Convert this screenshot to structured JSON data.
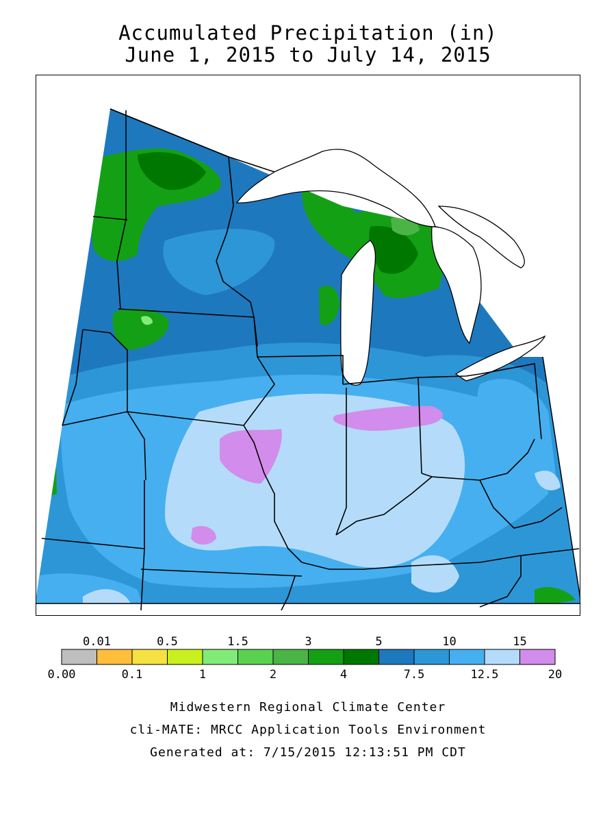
{
  "title": {
    "line1": "Accumulated Precipitation (in)",
    "line2": "June 1, 2015 to July 14, 2015"
  },
  "legend": {
    "colors": [
      "#bebebe",
      "#ffbe3c",
      "#f5e141",
      "#c8f01e",
      "#82eb78",
      "#5ad250",
      "#4bb446",
      "#14a014",
      "#007800",
      "#1e78be",
      "#2d96d7",
      "#46aff0",
      "#b4dcfa",
      "#d28ceb"
    ],
    "upper_labels": [
      "0.01",
      "0.5",
      "1.5",
      "3",
      "5",
      "10",
      "15"
    ],
    "lower_labels": [
      "0.00",
      "0.1",
      "1",
      "2",
      "4",
      "7.5",
      "12.5",
      "20"
    ]
  },
  "footer": {
    "line1": "Midwestern Regional Climate Center",
    "line2": "cli-MATE: MRCC Application Tools Environment",
    "line3": "Generated at: 7/15/2015 12:13:51 PM CDT"
  }
}
